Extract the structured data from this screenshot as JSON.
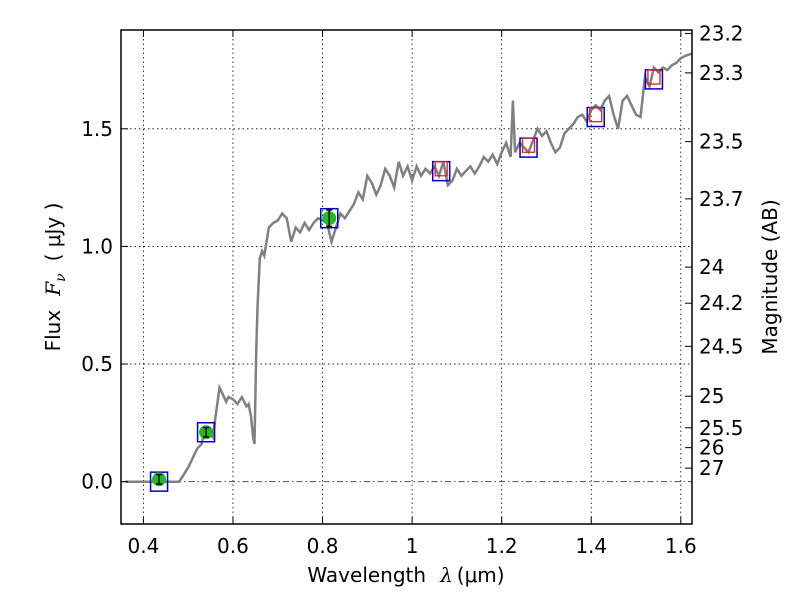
{
  "chart_data": {
    "type": "line",
    "xlabel_text": "Wavelength",
    "xlabel_symbol": "λ",
    "xlabel_unit": "(μm)",
    "ylabel_text": "Flux",
    "ylabel_symbol": "F",
    "ylabel_sub": "ν",
    "ylabel_unit": "( μJy )",
    "y2label": "Magnitude (AB)",
    "xlim": [
      0.35,
      1.625
    ],
    "ylim": [
      -0.18,
      1.92
    ],
    "grid": true,
    "x_ticks": [
      0.4,
      0.6,
      0.8,
      1.0,
      1.2,
      1.4,
      1.6
    ],
    "x_tick_labels": [
      "0.4",
      "0.6",
      "0.8",
      "1",
      "1.2",
      "1.4",
      "1.6"
    ],
    "y_ticks": [
      0.0,
      0.5,
      1.0,
      1.5
    ],
    "y_tick_labels": [
      "0.0",
      "0.5",
      "1.0",
      "1.5"
    ],
    "mag_ticks": [
      23.2,
      23.3,
      23.5,
      23.7,
      24,
      24.2,
      24.5,
      25,
      25.5,
      26,
      27
    ],
    "mag_tick_labels": [
      "23.2",
      "23.3",
      "23.5",
      "23.7",
      "24",
      "24.2",
      "24.5",
      "25",
      "25.5",
      "26",
      "27"
    ],
    "colors": {
      "model_line": "#808080",
      "observed": "#22bb22",
      "box": "#0000cc",
      "model_square": "#dd2222",
      "zero_line": "#555555"
    },
    "series": [
      {
        "name": "model spectrum",
        "x": [
          0.36,
          0.4,
          0.44,
          0.47,
          0.48,
          0.5,
          0.52,
          0.53,
          0.535,
          0.545,
          0.555,
          0.56,
          0.57,
          0.575,
          0.585,
          0.59,
          0.6,
          0.61,
          0.62,
          0.63,
          0.635,
          0.64,
          0.645,
          0.648,
          0.652,
          0.655,
          0.66,
          0.665,
          0.67,
          0.68,
          0.69,
          0.7,
          0.71,
          0.72,
          0.73,
          0.74,
          0.75,
          0.76,
          0.77,
          0.78,
          0.79,
          0.8,
          0.81,
          0.82,
          0.83,
          0.84,
          0.85,
          0.86,
          0.87,
          0.88,
          0.89,
          0.9,
          0.91,
          0.92,
          0.93,
          0.94,
          0.95,
          0.96,
          0.97,
          0.98,
          0.99,
          1.0,
          1.01,
          1.02,
          1.03,
          1.04,
          1.05,
          1.06,
          1.07,
          1.08,
          1.09,
          1.1,
          1.11,
          1.12,
          1.13,
          1.14,
          1.15,
          1.16,
          1.17,
          1.18,
          1.19,
          1.2,
          1.21,
          1.22,
          1.225,
          1.23,
          1.24,
          1.25,
          1.26,
          1.27,
          1.28,
          1.29,
          1.3,
          1.31,
          1.32,
          1.33,
          1.34,
          1.35,
          1.36,
          1.37,
          1.38,
          1.39,
          1.4,
          1.41,
          1.42,
          1.43,
          1.44,
          1.45,
          1.46,
          1.47,
          1.48,
          1.49,
          1.5,
          1.51,
          1.52,
          1.53,
          1.54,
          1.55,
          1.56,
          1.57,
          1.58,
          1.59,
          1.6,
          1.61,
          1.625
        ],
        "values": [
          0.0,
          0.0,
          0.0,
          0.0,
          0.0,
          0.06,
          0.14,
          0.16,
          0.2,
          0.22,
          0.19,
          0.26,
          0.4,
          0.38,
          0.34,
          0.36,
          0.35,
          0.33,
          0.36,
          0.32,
          0.33,
          0.28,
          0.19,
          0.16,
          0.55,
          0.75,
          0.95,
          0.98,
          0.96,
          1.08,
          1.1,
          1.11,
          1.14,
          1.12,
          1.02,
          1.08,
          1.06,
          1.1,
          1.07,
          1.1,
          1.12,
          1.11,
          1.1,
          1.02,
          1.08,
          1.14,
          1.12,
          1.15,
          1.18,
          1.23,
          1.2,
          1.3,
          1.27,
          1.22,
          1.26,
          1.33,
          1.3,
          1.25,
          1.36,
          1.3,
          1.34,
          1.28,
          1.34,
          1.3,
          1.33,
          1.31,
          1.34,
          1.3,
          1.36,
          1.26,
          1.28,
          1.33,
          1.3,
          1.32,
          1.34,
          1.31,
          1.34,
          1.38,
          1.36,
          1.39,
          1.35,
          1.4,
          1.44,
          1.38,
          1.62,
          1.4,
          1.44,
          1.42,
          1.4,
          1.45,
          1.5,
          1.47,
          1.49,
          1.44,
          1.4,
          1.42,
          1.48,
          1.5,
          1.52,
          1.55,
          1.56,
          1.53,
          1.58,
          1.6,
          1.58,
          1.62,
          1.64,
          1.56,
          1.5,
          1.62,
          1.64,
          1.6,
          1.56,
          1.55,
          1.72,
          1.68,
          1.76,
          1.74,
          1.76,
          1.75,
          1.77,
          1.78,
          1.8,
          1.81,
          1.82
        ]
      },
      {
        "name": "observed photometry",
        "x": [
          0.435,
          0.54,
          0.815
        ],
        "values": [
          0.01,
          0.21,
          1.12
        ],
        "errors": [
          0.02,
          0.02,
          0.035
        ]
      },
      {
        "name": "filter bands",
        "x": [
          0.435,
          0.54,
          0.815,
          1.065,
          1.26,
          1.41,
          1.54
        ],
        "values": [
          0.0,
          0.21,
          1.12,
          1.32,
          1.42,
          1.55,
          1.71
        ]
      },
      {
        "name": "model photometry",
        "x": [
          1.065,
          1.26,
          1.41,
          1.54
        ],
        "values": [
          1.33,
          1.43,
          1.56,
          1.72
        ]
      }
    ]
  }
}
